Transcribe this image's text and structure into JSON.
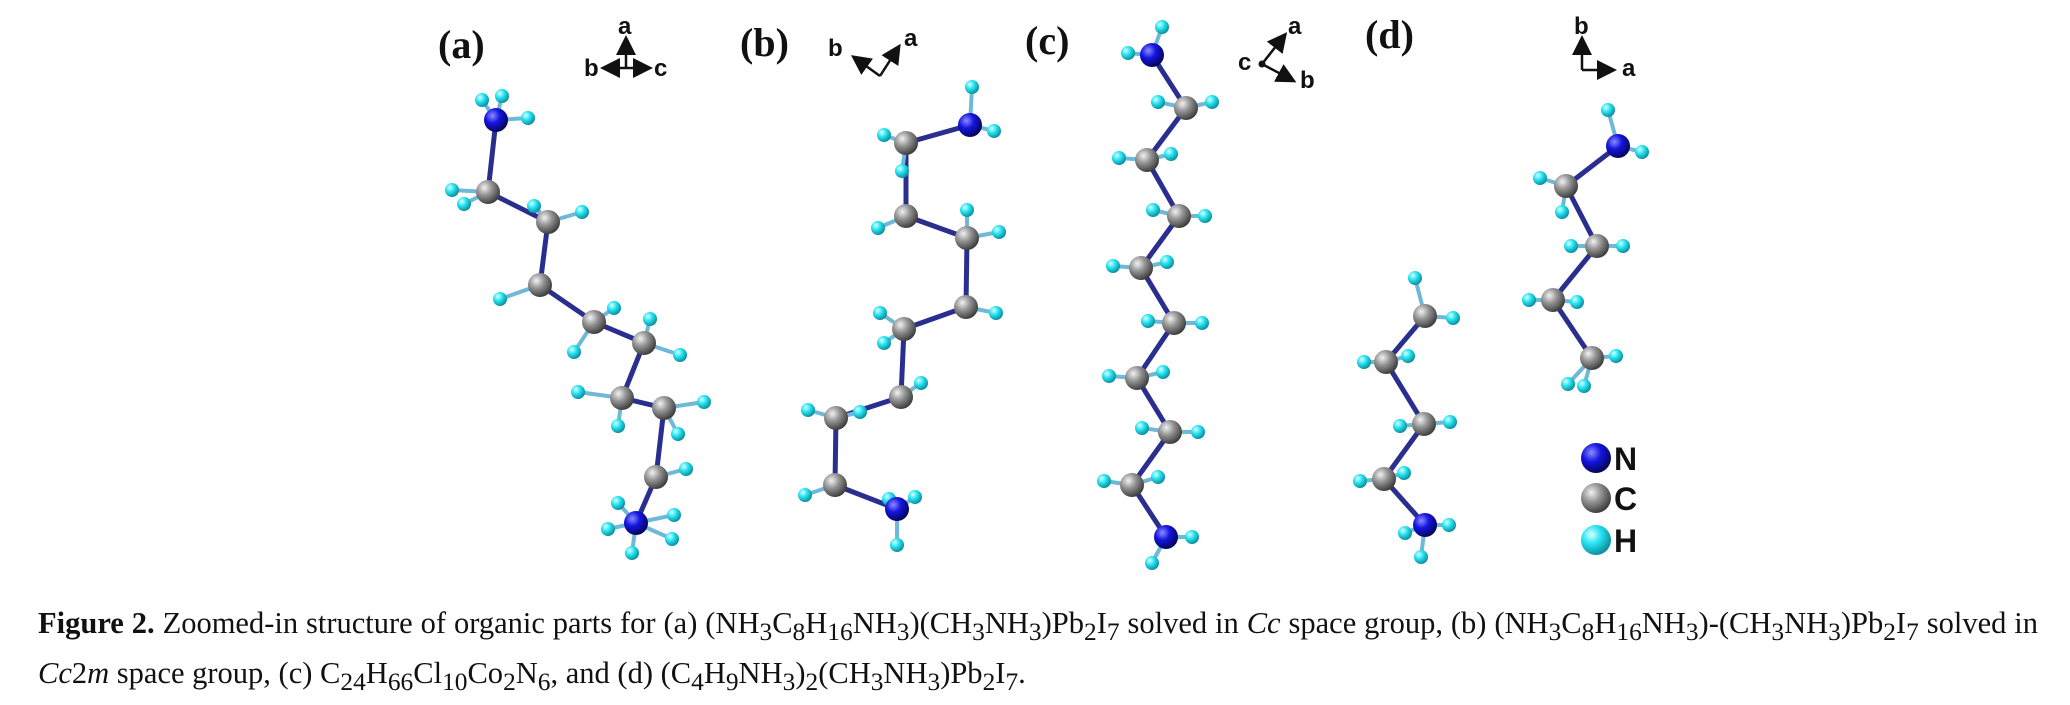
{
  "figure": {
    "panels": [
      {
        "label": "(a)",
        "axes": [
          "a",
          "b",
          "c"
        ]
      },
      {
        "label": "(b)",
        "axes": [
          "b",
          "a"
        ]
      },
      {
        "label": "(c)",
        "axes": [
          "a",
          "c",
          "b"
        ]
      },
      {
        "label": "(d)",
        "axes": [
          "b",
          "a"
        ]
      }
    ],
    "legend": [
      {
        "label": "N",
        "color": "#1010d8"
      },
      {
        "label": "C",
        "color": "#8c8c8c"
      },
      {
        "label": "H",
        "color": "#22e0f0"
      }
    ],
    "bond_color": "#2a2f8f"
  },
  "caption": {
    "label": "Figure 2.",
    "p1": " Zoomed-in structure of organic parts for (a) (NH",
    "s1": "3",
    "p2": "C",
    "s2": "8",
    "p3": "H",
    "s3": "16",
    "p4": "NH",
    "s4": "3",
    "p5": ")(CH",
    "s5": "3",
    "p6": "NH",
    "s6": "3",
    "p7": ")Pb",
    "s7": "2",
    "p8": "I",
    "s8": "7",
    "p9": " solved in ",
    "it1": "Cc",
    "p10": " space group, (b) (NH",
    "s9": "3",
    "p11": "C",
    "s10": "8",
    "p12": "H",
    "s11": "16",
    "p13": "NH",
    "s12": "3",
    "p14": ")-(CH",
    "s13": "3",
    "p15": "NH",
    "s14": "3",
    "p16": ")Pb",
    "s15": "2",
    "p17": "I",
    "s16": "7",
    "p18": " solved in ",
    "it2": "Cc",
    "p19": "2",
    "it3": "m",
    "p20": " space group, (c) C",
    "s17": "24",
    "p21": "H",
    "s18": "66",
    "p22": "Cl",
    "s19": "10",
    "p23": "Co",
    "s20": "2",
    "p24": "N",
    "s21": "6",
    "p25": ", and (d) (C",
    "s22": "4",
    "p26": "H",
    "s23": "9",
    "p27": "NH",
    "s24": "3",
    "p28": ")",
    "s25": "2",
    "p29": "(CH",
    "s26": "3",
    "p30": "NH",
    "s27": "3",
    "p31": ")Pb",
    "s28": "2",
    "p32": "I",
    "s29": "7",
    "p33": "."
  }
}
